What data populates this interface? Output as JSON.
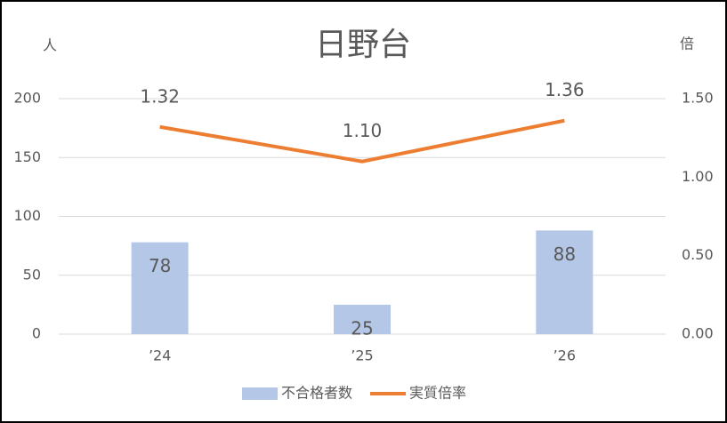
{
  "chart_data": {
    "type": "combo",
    "title": "日野台",
    "y_label": "人",
    "y2_label": "倍",
    "categories": [
      "’24",
      "’25",
      "’26"
    ],
    "series": [
      {
        "name": "不合格者数",
        "type": "bar",
        "color": "#b4c7e7",
        "values": [
          78,
          25,
          88
        ]
      },
      {
        "name": "実質倍率",
        "type": "line",
        "axis": "y2",
        "color": "#ed7d31",
        "values": [
          1.32,
          1.1,
          1.36
        ],
        "value_labels": [
          "1.32",
          "1.10",
          "1.36"
        ]
      }
    ],
    "ylim": [
      0,
      200
    ],
    "yticks": [
      0,
      50,
      100,
      150,
      200
    ],
    "y2lim": [
      0,
      1.5
    ],
    "y2ticks": [
      {
        "value": 0,
        "label": "0.00"
      },
      {
        "value": 0.5,
        "label": "0.50"
      },
      {
        "value": 1,
        "label": "1.00"
      },
      {
        "value": 1.5,
        "label": "1.50"
      }
    ],
    "grid": true,
    "legend": "bottom"
  }
}
